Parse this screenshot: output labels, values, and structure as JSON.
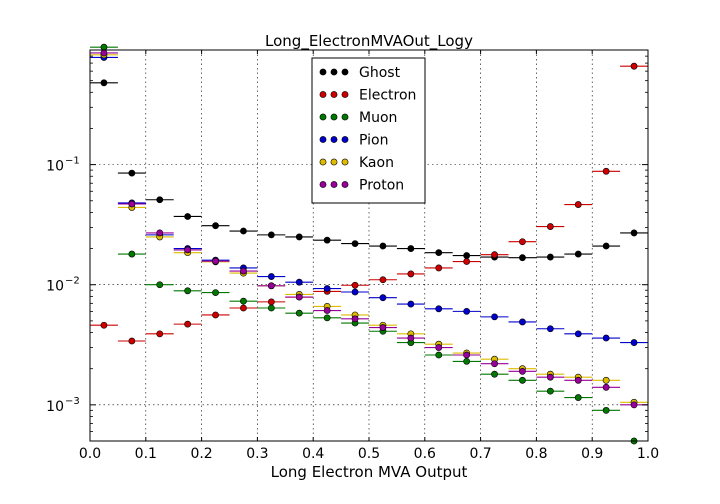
{
  "chart_data": {
    "type": "scatter",
    "title": "Long_ElectronMVAOut_Logy",
    "xlabel": "Long Electron MVA Output",
    "ylabel": "",
    "xlim": [
      0.0,
      1.0
    ],
    "ylim": [
      0.0005,
      0.9
    ],
    "yscale": "log",
    "grid": true,
    "legend_position": "top-center",
    "error_bars": "horizontal (bin width)",
    "x_ticks": [
      "0.0",
      "0.1",
      "0.2",
      "0.3",
      "0.4",
      "0.5",
      "0.6",
      "0.7",
      "0.8",
      "0.9",
      "1.0"
    ],
    "y_ticks": [
      {
        "value": 0.001,
        "base": "10",
        "exp": "−3"
      },
      {
        "value": 0.01,
        "base": "10",
        "exp": "−2"
      },
      {
        "value": 0.1,
        "base": "10",
        "exp": "−1"
      }
    ],
    "x": [
      0.025,
      0.075,
      0.125,
      0.175,
      0.225,
      0.275,
      0.325,
      0.375,
      0.425,
      0.475,
      0.525,
      0.575,
      0.625,
      0.675,
      0.725,
      0.775,
      0.825,
      0.875,
      0.925,
      0.975
    ],
    "bin_width": 0.05,
    "series": [
      {
        "name": "Ghost",
        "color": "#000000",
        "values": [
          0.48,
          0.085,
          0.051,
          0.037,
          0.031,
          0.028,
          0.026,
          0.025,
          0.0235,
          0.022,
          0.021,
          0.02,
          0.0185,
          0.0175,
          0.017,
          0.0168,
          0.017,
          0.018,
          0.021,
          0.027
        ]
      },
      {
        "name": "Electron",
        "color": "#cc0000",
        "values": [
          0.0046,
          0.0034,
          0.0039,
          0.0047,
          0.0056,
          0.0064,
          0.0072,
          0.0079,
          0.0088,
          0.0099,
          0.011,
          0.0123,
          0.0138,
          0.0156,
          0.0178,
          0.0228,
          0.0305,
          0.0465,
          0.088,
          0.66
        ]
      },
      {
        "name": "Muon",
        "color": "#007700",
        "values": [
          0.95,
          0.018,
          0.01,
          0.0089,
          0.0086,
          0.0073,
          0.0064,
          0.0058,
          0.0053,
          0.0048,
          0.0041,
          0.0033,
          0.0026,
          0.0023,
          0.0018,
          0.0016,
          0.0013,
          0.00115,
          0.0009,
          0.0005
        ]
      },
      {
        "name": "Pion",
        "color": "#0000cc",
        "values": [
          0.78,
          0.048,
          0.026,
          0.02,
          0.016,
          0.0138,
          0.0117,
          0.0105,
          0.0093,
          0.0087,
          0.0078,
          0.0069,
          0.0063,
          0.006,
          0.0054,
          0.0049,
          0.0043,
          0.0039,
          0.0036,
          0.0033
        ]
      },
      {
        "name": "Kaon",
        "color": "#ddbb00",
        "values": [
          0.82,
          0.044,
          0.025,
          0.0185,
          0.0155,
          0.0125,
          0.0098,
          0.0083,
          0.0066,
          0.0056,
          0.0046,
          0.0039,
          0.0032,
          0.0027,
          0.0024,
          0.002,
          0.0018,
          0.0017,
          0.0016,
          0.00105
        ]
      },
      {
        "name": "Proton",
        "color": "#990099",
        "values": [
          0.85,
          0.047,
          0.027,
          0.0195,
          0.0157,
          0.013,
          0.0098,
          0.0079,
          0.0061,
          0.0052,
          0.0044,
          0.0036,
          0.003,
          0.0026,
          0.0022,
          0.0019,
          0.0017,
          0.0016,
          0.0014,
          0.001
        ]
      }
    ]
  }
}
